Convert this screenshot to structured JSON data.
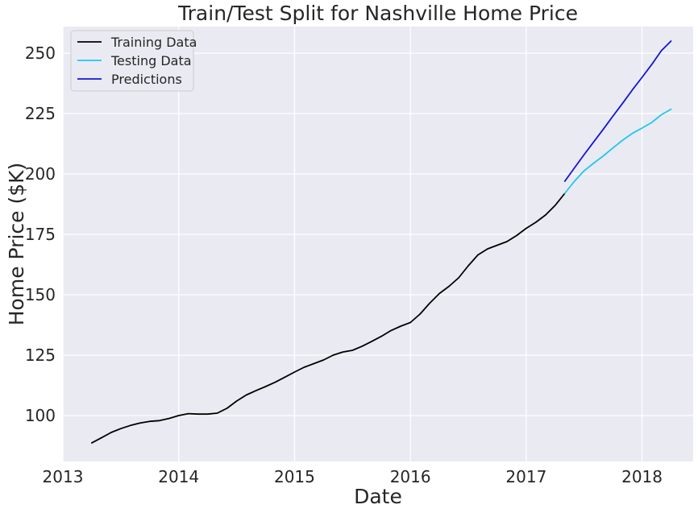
{
  "chart_data": {
    "type": "line",
    "title": "Train/Test Split for Nashville Home Price",
    "xlabel": "Date",
    "ylabel": "Home Price ($K)",
    "xlim": [
      "2013-01-01",
      "2018-06-10"
    ],
    "ylim": [
      81,
      261
    ],
    "x_ticks": [
      "2013",
      "2014",
      "2015",
      "2016",
      "2017",
      "2018"
    ],
    "y_ticks": [
      100,
      125,
      150,
      175,
      200,
      225,
      250
    ],
    "grid": true,
    "legend_position": "top-left",
    "background": "#EAEAF2",
    "series": [
      {
        "name": "Training Data",
        "color": "#000000",
        "x": [
          "2013-04",
          "2013-05",
          "2013-06",
          "2013-07",
          "2013-08",
          "2013-09",
          "2013-10",
          "2013-11",
          "2013-12",
          "2014-01",
          "2014-02",
          "2014-03",
          "2014-04",
          "2014-05",
          "2014-06",
          "2014-07",
          "2014-08",
          "2014-09",
          "2014-10",
          "2014-11",
          "2014-12",
          "2015-01",
          "2015-02",
          "2015-03",
          "2015-04",
          "2015-05",
          "2015-06",
          "2015-07",
          "2015-08",
          "2015-09",
          "2015-10",
          "2015-11",
          "2015-12",
          "2016-01",
          "2016-02",
          "2016-03",
          "2016-04",
          "2016-05",
          "2016-06",
          "2016-07",
          "2016-08",
          "2016-09",
          "2016-10",
          "2016-11",
          "2016-12",
          "2017-01",
          "2017-02",
          "2017-03",
          "2017-04",
          "2017-05"
        ],
        "values": [
          88.7,
          90.8,
          93.0,
          94.6,
          95.9,
          96.9,
          97.6,
          97.9,
          98.8,
          100.0,
          100.8,
          100.6,
          100.6,
          101.0,
          103.0,
          106.0,
          108.5,
          110.3,
          112.0,
          113.8,
          115.9,
          118.0,
          120.0,
          121.5,
          123.0,
          125.0,
          126.3,
          127.0,
          128.7,
          130.7,
          132.8,
          135.2,
          137.0,
          138.5,
          142.0,
          146.5,
          150.5,
          153.5,
          157.0,
          162.0,
          166.5,
          169.0,
          170.5,
          172.0,
          174.5,
          177.5,
          180.0,
          183.0,
          187.0,
          192.0
        ]
      },
      {
        "name": "Testing Data",
        "color": "#1EC8F0",
        "x": [
          "2017-05",
          "2017-06",
          "2017-07",
          "2017-08",
          "2017-09",
          "2017-10",
          "2017-11",
          "2017-12",
          "2018-01",
          "2018-02",
          "2018-03",
          "2018-04"
        ],
        "values": [
          192.0,
          197.0,
          201.3,
          204.5,
          207.5,
          210.8,
          214.0,
          216.8,
          219.0,
          221.3,
          224.5,
          226.8
        ]
      },
      {
        "name": "Predictions",
        "color": "#1414D2",
        "x": [
          "2017-05",
          "2017-06",
          "2017-07",
          "2017-08",
          "2017-09",
          "2017-10",
          "2017-11",
          "2017-12",
          "2018-01",
          "2018-02",
          "2018-03",
          "2018-04"
        ],
        "values": [
          197.0,
          202.5,
          208.0,
          213.3,
          218.6,
          224.0,
          229.3,
          234.8,
          240.0,
          245.3,
          251.0,
          255.0
        ]
      }
    ]
  }
}
